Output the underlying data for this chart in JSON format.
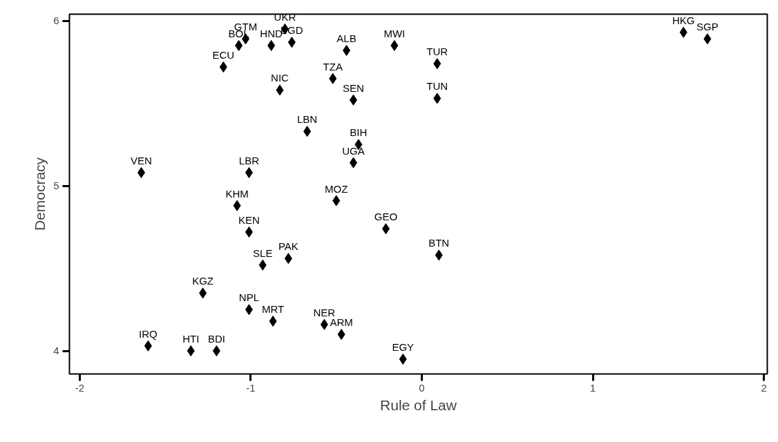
{
  "chart_data": {
    "type": "scatter",
    "xlabel": "Rule of Law",
    "ylabel": "Democracy",
    "xlim": [
      -2.06,
      2.02
    ],
    "ylim": [
      3.86,
      6.04
    ],
    "xticks": [
      -2,
      -1,
      0,
      1,
      2
    ],
    "yticks": [
      4,
      5,
      6
    ],
    "grid": false,
    "marker": "diamond",
    "series": [
      {
        "color": "#000000",
        "x": [
          -1.64,
          -1.07,
          -1.03,
          -0.8,
          -0.88,
          -0.76,
          -0.44,
          -1.16,
          -0.83,
          -0.52,
          -0.4,
          -0.67,
          -0.37,
          -0.4,
          -1.01,
          -1.08,
          -0.5,
          -0.16,
          0.09,
          0.09,
          1.53,
          1.67,
          -0.21,
          0.1,
          -0.11,
          -1.01,
          -0.93,
          -0.78,
          -1.28,
          -1.01,
          -0.87,
          -0.57,
          -0.47,
          -1.6,
          -1.35,
          -1.2
        ],
        "values": [
          5.08,
          5.85,
          5.89,
          5.95,
          5.85,
          5.87,
          5.82,
          5.72,
          5.58,
          5.65,
          5.52,
          5.33,
          5.25,
          5.14,
          5.08,
          4.88,
          4.91,
          5.85,
          5.74,
          5.53,
          5.93,
          5.89,
          4.74,
          4.58,
          3.95,
          4.72,
          4.52,
          4.56,
          4.35,
          4.25,
          4.18,
          4.16,
          4.1,
          4.03,
          4.0,
          4.0
        ]
      }
    ],
    "annotations": [
      {
        "text": "VEN",
        "x": -1.64,
        "y": 5.08
      },
      {
        "text": "BOL",
        "x": -1.07,
        "y": 5.85
      },
      {
        "text": "GTM",
        "x": -1.03,
        "y": 5.89
      },
      {
        "text": "UKR",
        "x": -0.8,
        "y": 5.95
      },
      {
        "text": "HND",
        "x": -0.88,
        "y": 5.85
      },
      {
        "text": "BGD",
        "x": -0.76,
        "y": 5.87
      },
      {
        "text": "ALB",
        "x": -0.44,
        "y": 5.82
      },
      {
        "text": "ECU",
        "x": -1.16,
        "y": 5.72
      },
      {
        "text": "NIC",
        "x": -0.83,
        "y": 5.58
      },
      {
        "text": "TZA",
        "x": -0.52,
        "y": 5.65
      },
      {
        "text": "SEN",
        "x": -0.4,
        "y": 5.52
      },
      {
        "text": "LBN",
        "x": -0.67,
        "y": 5.33
      },
      {
        "text": "BIH",
        "x": -0.37,
        "y": 5.25
      },
      {
        "text": "UGA",
        "x": -0.4,
        "y": 5.14
      },
      {
        "text": "LBR",
        "x": -1.01,
        "y": 5.08
      },
      {
        "text": "KHM",
        "x": -1.08,
        "y": 4.88
      },
      {
        "text": "MOZ",
        "x": -0.5,
        "y": 4.91
      },
      {
        "text": "MWI",
        "x": -0.16,
        "y": 5.85
      },
      {
        "text": "TUR",
        "x": 0.09,
        "y": 5.74
      },
      {
        "text": "TUN",
        "x": 0.09,
        "y": 5.53
      },
      {
        "text": "HKG",
        "x": 1.53,
        "y": 5.93
      },
      {
        "text": "SGP",
        "x": 1.67,
        "y": 5.89
      },
      {
        "text": "GEO",
        "x": -0.21,
        "y": 4.74
      },
      {
        "text": "BTN",
        "x": 0.1,
        "y": 4.58
      },
      {
        "text": "EGY",
        "x": -0.11,
        "y": 3.95
      },
      {
        "text": "KEN",
        "x": -1.01,
        "y": 4.72
      },
      {
        "text": "SLE",
        "x": -0.93,
        "y": 4.52
      },
      {
        "text": "PAK",
        "x": -0.78,
        "y": 4.56
      },
      {
        "text": "KGZ",
        "x": -1.28,
        "y": 4.35
      },
      {
        "text": "NPL",
        "x": -1.01,
        "y": 4.25
      },
      {
        "text": "MRT",
        "x": -0.87,
        "y": 4.18
      },
      {
        "text": "NER",
        "x": -0.57,
        "y": 4.16
      },
      {
        "text": "ARM",
        "x": -0.47,
        "y": 4.1
      },
      {
        "text": "IRQ",
        "x": -1.6,
        "y": 4.03
      },
      {
        "text": "HTI",
        "x": -1.35,
        "y": 4.0
      },
      {
        "text": "BDI",
        "x": -1.2,
        "y": 4.0
      }
    ]
  }
}
